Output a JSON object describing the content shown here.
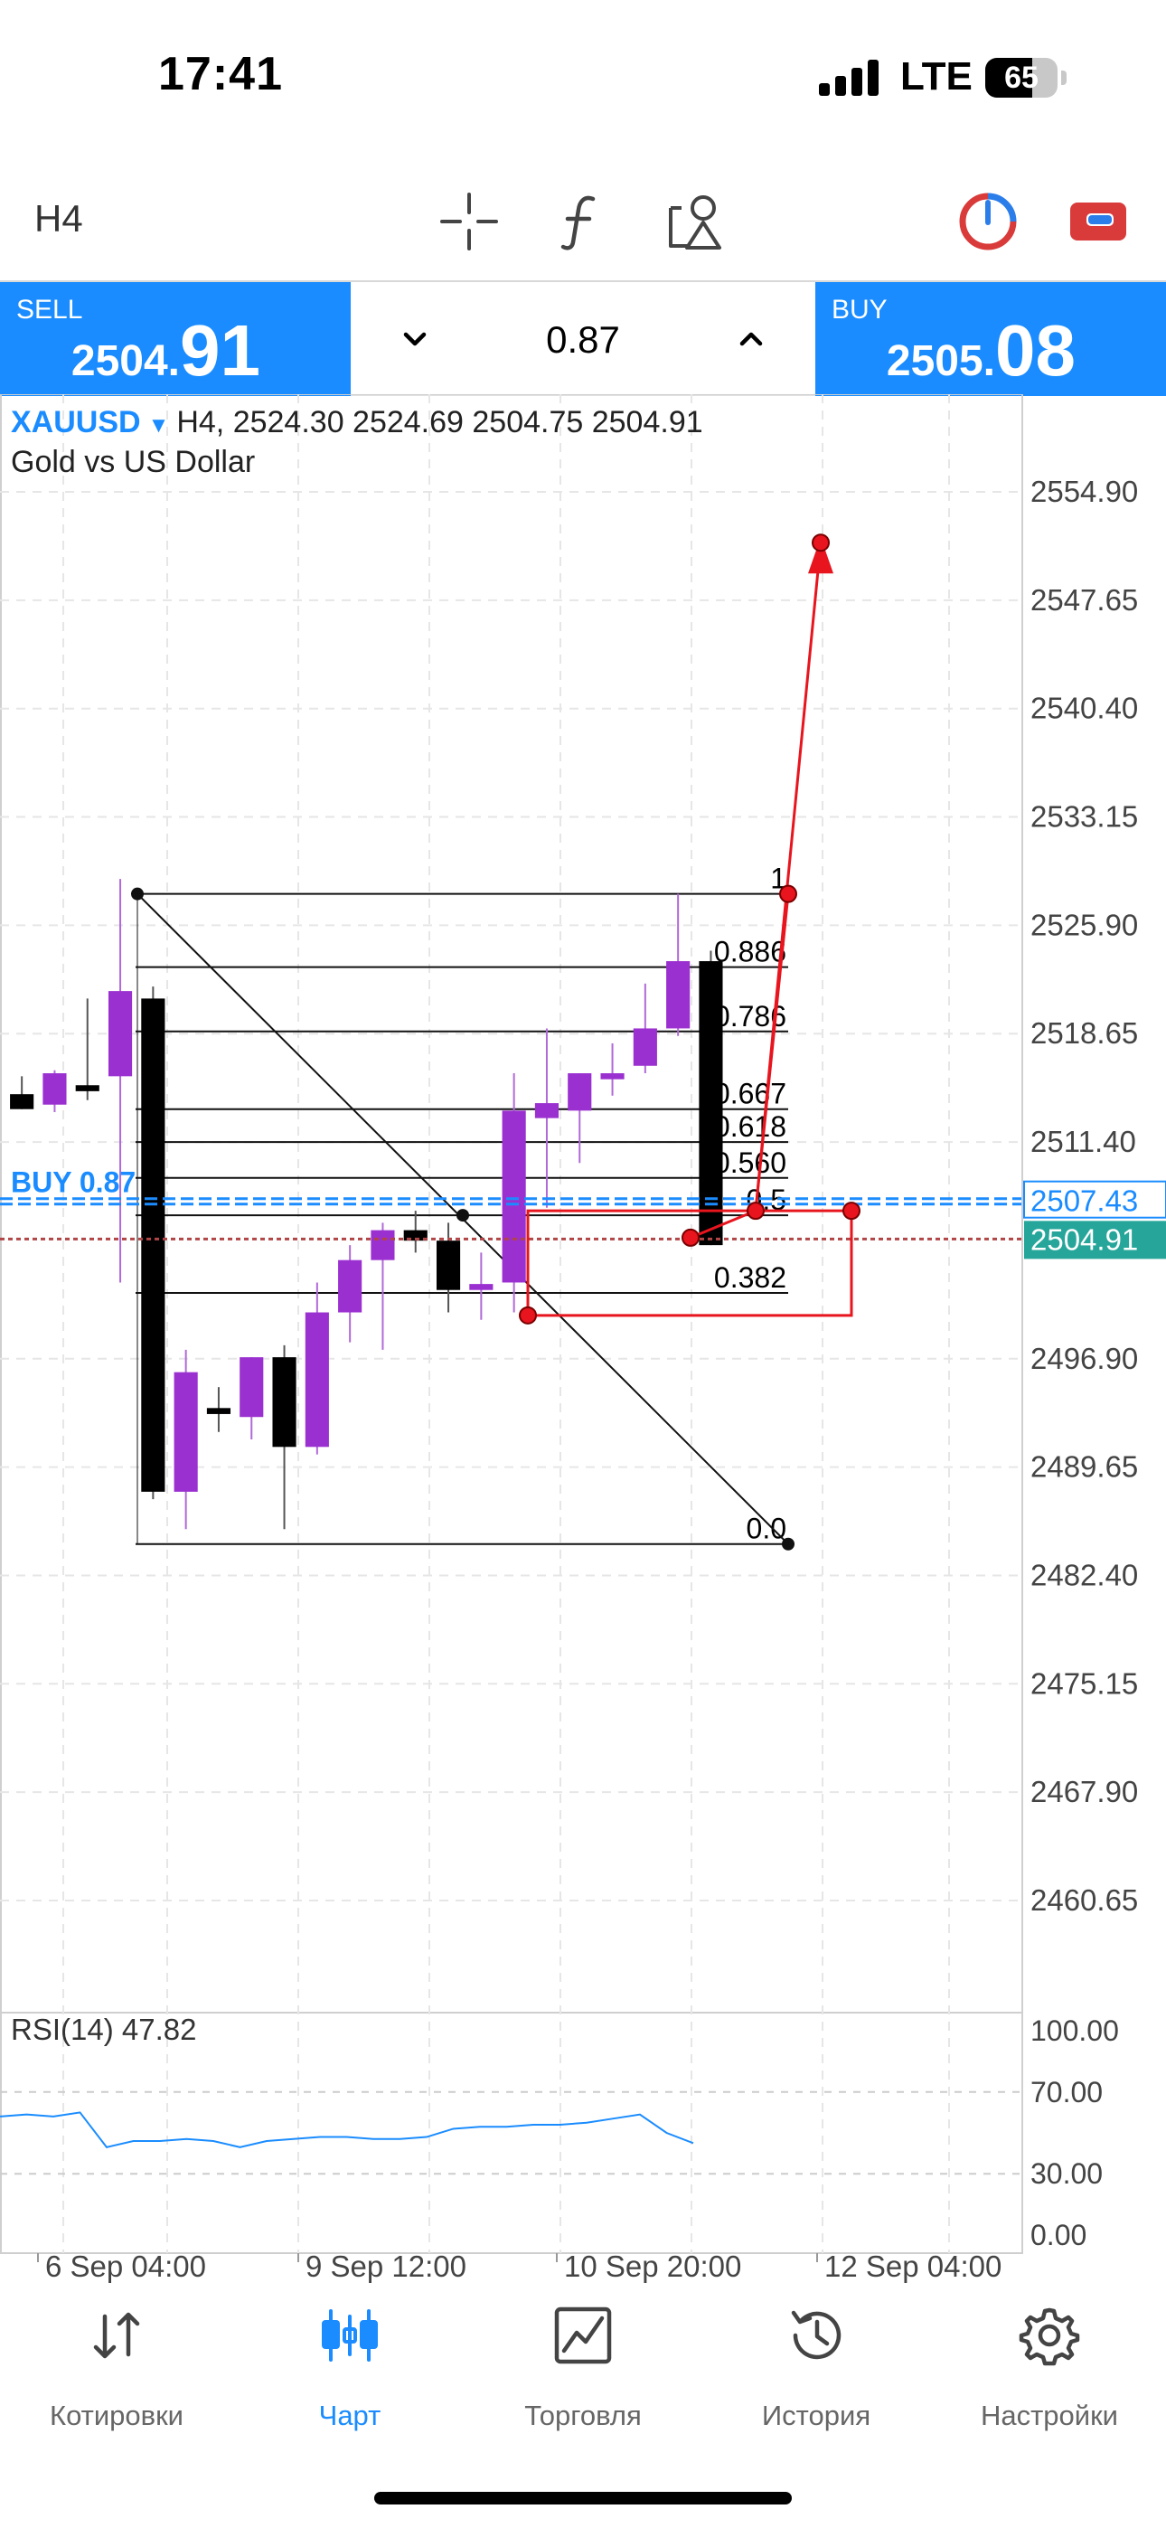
{
  "status_bar": {
    "time": "17:41",
    "network": "LTE",
    "battery": "65",
    "battery_level": 0.65
  },
  "toolbar": {
    "timeframe": "H4",
    "icons": [
      "crosshair-icon",
      "function-icon",
      "objects-icon",
      "trade-tool-icon",
      "account-icon"
    ]
  },
  "trade": {
    "sell_label": "SELL",
    "sell_small": "2504.",
    "sell_big": "91",
    "buy_label": "BUY",
    "buy_small": "2505.",
    "buy_big": "08",
    "volume": "0.87"
  },
  "chart": {
    "symbol": "XAUUSD",
    "header": "H4, 2524.30 2524.69 2504.75 2504.91",
    "description": "Gold vs US Dollar",
    "position_label": "BUY 0.87",
    "position_price": "2507.43",
    "current_price": "2504.91",
    "rsi_label": "RSI(14) 47.82",
    "colors": {
      "bull": "#9b30d0",
      "bear": "#000000",
      "drawing": "#e8141e",
      "accent": "#1a8cff",
      "bid": "#26a69a"
    }
  },
  "chart_data": {
    "type": "candlestick",
    "price_axis_ticks": [
      "2554.90",
      "2547.65",
      "2540.40",
      "2533.15",
      "2525.90",
      "2518.65",
      "2511.40",
      "2496.90",
      "2489.65",
      "2482.40",
      "2475.15",
      "2467.90",
      "2460.65"
    ],
    "price_axis_range": [
      2457.0,
      2559.0
    ],
    "time_axis_labels": [
      "6 Sep 04:00",
      "9 Sep 12:00",
      "10 Sep 20:00",
      "12 Sep 04:00"
    ],
    "fibonacci_levels": [
      "1",
      "0.886",
      "0.786",
      "0.667",
      "0.618",
      "0.560",
      "0.5",
      "0.382",
      "0.0"
    ],
    "fibonacci_prices": [
      2528.0,
      2523.1,
      2518.8,
      2513.6,
      2511.4,
      2509.0,
      2506.5,
      2501.3,
      2484.5
    ],
    "rsi_axis_ticks": [
      "100.00",
      "70.00",
      "30.00",
      "0.00"
    ],
    "rsi_values": [
      58,
      59,
      58,
      60,
      43,
      46,
      46,
      47,
      46,
      43,
      46,
      47,
      48,
      48,
      47,
      47,
      48,
      52,
      53,
      53,
      54,
      54,
      55,
      57,
      59,
      50,
      45
    ],
    "candles": [
      {
        "o": 2514.6,
        "h": 2515.8,
        "l": 2513.6,
        "c": 2513.6
      },
      {
        "o": 2513.9,
        "h": 2516.2,
        "l": 2513.4,
        "c": 2516.0
      },
      {
        "o": 2515.2,
        "h": 2521.0,
        "l": 2514.2,
        "c": 2514.8
      },
      {
        "o": 2515.8,
        "h": 2529.0,
        "l": 2502.0,
        "c": 2521.5
      },
      {
        "o": 2521.0,
        "h": 2521.8,
        "l": 2487.5,
        "c": 2488.0
      },
      {
        "o": 2488.0,
        "h": 2497.5,
        "l": 2485.5,
        "c": 2496.0
      },
      {
        "o": 2493.6,
        "h": 2495.0,
        "l": 2492.0,
        "c": 2493.2
      },
      {
        "o": 2493.0,
        "h": 2497.0,
        "l": 2491.5,
        "c": 2497.0
      },
      {
        "o": 2497.0,
        "h": 2497.8,
        "l": 2485.5,
        "c": 2491.0
      },
      {
        "o": 2491.0,
        "h": 2502.0,
        "l": 2490.5,
        "c": 2500.0
      },
      {
        "o": 2500.0,
        "h": 2504.5,
        "l": 2498.0,
        "c": 2503.5
      },
      {
        "o": 2503.5,
        "h": 2506.0,
        "l": 2497.5,
        "c": 2505.5
      },
      {
        "o": 2505.5,
        "h": 2506.8,
        "l": 2504.0,
        "c": 2504.8
      },
      {
        "o": 2504.8,
        "h": 2506.0,
        "l": 2500.0,
        "c": 2501.5
      },
      {
        "o": 2501.5,
        "h": 2504.0,
        "l": 2499.5,
        "c": 2501.9
      },
      {
        "o": 2502.0,
        "h": 2516.0,
        "l": 2500.0,
        "c": 2513.5
      },
      {
        "o": 2513.0,
        "h": 2519.0,
        "l": 2507.0,
        "c": 2514.0
      },
      {
        "o": 2513.5,
        "h": 2516.0,
        "l": 2510.0,
        "c": 2516.0
      },
      {
        "o": 2515.6,
        "h": 2518.0,
        "l": 2514.5,
        "c": 2516.0
      },
      {
        "o": 2516.5,
        "h": 2522.0,
        "l": 2516.0,
        "c": 2519.0
      },
      {
        "o": 2519.0,
        "h": 2528.0,
        "l": 2518.5,
        "c": 2523.5
      },
      {
        "o": 2523.5,
        "h": 2524.2,
        "l": 2504.5,
        "c": 2504.5
      }
    ]
  },
  "nav": [
    {
      "label": "Котировки",
      "icon": "quotes-icon",
      "active": false
    },
    {
      "label": "Чарт",
      "icon": "chart-icon",
      "active": true
    },
    {
      "label": "Торговля",
      "icon": "trade-icon",
      "active": false
    },
    {
      "label": "История",
      "icon": "history-icon",
      "active": false
    },
    {
      "label": "Настройки",
      "icon": "settings-icon",
      "active": false
    }
  ]
}
